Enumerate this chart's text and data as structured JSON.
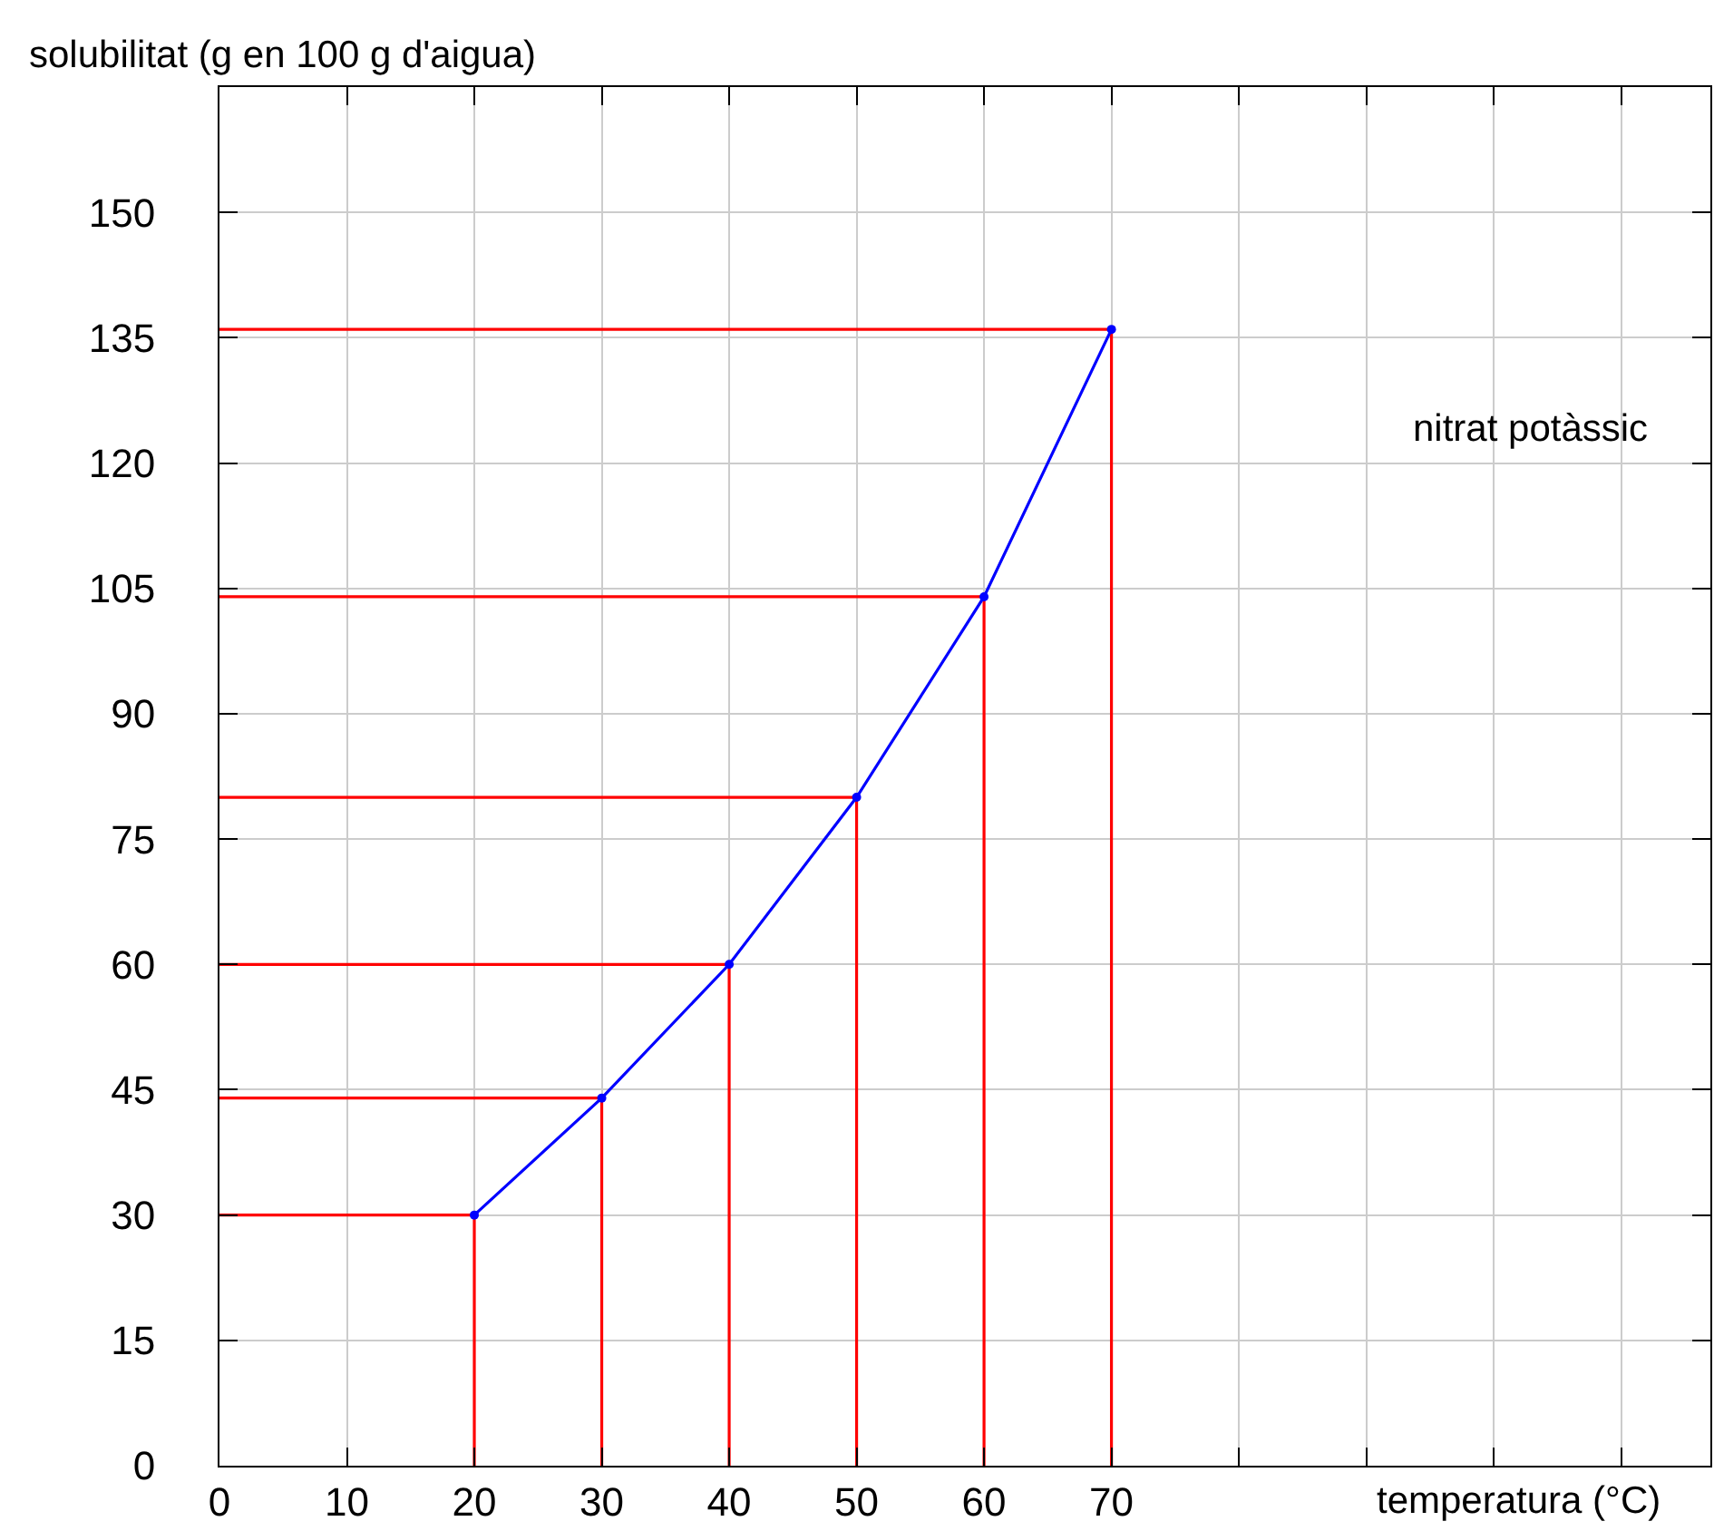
{
  "chart_data": {
    "type": "line",
    "xlabel": "temperatura (°C)",
    "ylabel": "solubilitat (g en 100 g d'aigua)",
    "annotations": [
      "nitrat potàssic"
    ],
    "xlim": [
      0,
      117
    ],
    "xticks": [
      0,
      10,
      20,
      30,
      40,
      50,
      60,
      70,
      {
        "value": 80,
        "label": null
      },
      {
        "value": 90,
        "label": null
      },
      {
        "value": 100,
        "label": null
      },
      {
        "value": 110,
        "label": null
      }
    ],
    "ylim": [
      0,
      165
    ],
    "yticks": [
      0,
      15,
      30,
      45,
      60,
      75,
      90,
      105,
      120,
      135,
      150
    ],
    "grid": true,
    "series": [
      {
        "color": "#ff0000",
        "x": [
          0,
          20,
          20
        ],
        "values": [
          30,
          30,
          0
        ],
        "marker": "none"
      },
      {
        "color": "#ff0000",
        "x": [
          0,
          30,
          30
        ],
        "values": [
          44,
          44,
          0
        ],
        "marker": "none"
      },
      {
        "color": "#ff0000",
        "x": [
          0,
          40,
          40
        ],
        "values": [
          60,
          60,
          0
        ],
        "marker": "none"
      },
      {
        "color": "#ff0000",
        "x": [
          0,
          50,
          50
        ],
        "values": [
          80,
          80,
          0
        ],
        "marker": "none"
      },
      {
        "color": "#ff0000",
        "x": [
          0,
          60,
          60
        ],
        "values": [
          104,
          104,
          0
        ],
        "marker": "none"
      },
      {
        "color": "#ff0000",
        "x": [
          0,
          70,
          70
        ],
        "values": [
          136,
          136,
          0
        ],
        "marker": "none"
      },
      {
        "color": "#0000ff",
        "x": [
          20,
          30,
          40,
          50,
          60,
          70
        ],
        "values": [
          30,
          44,
          60,
          80,
          104,
          136
        ],
        "marker": "circle"
      }
    ]
  }
}
